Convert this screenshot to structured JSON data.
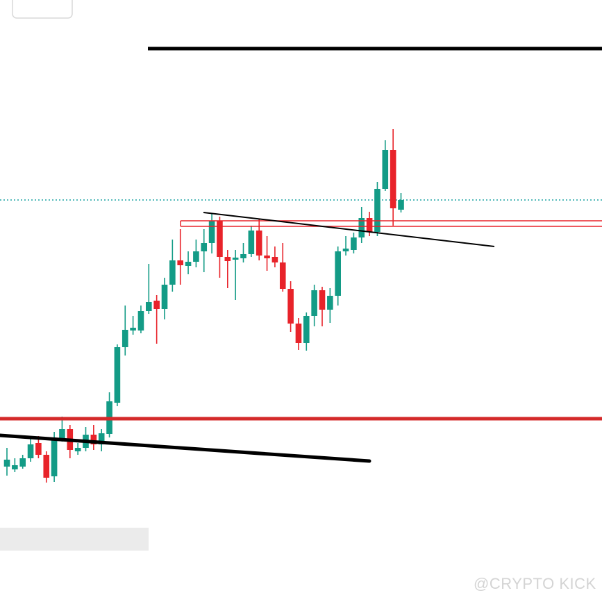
{
  "chart_data": {
    "type": "candlestick",
    "watermark": "@CRYPTO KICK",
    "ylim": [
      0,
      867
    ],
    "up_color": "#139b86",
    "down_color": "#e8232a",
    "open": [
      195,
      191,
      195,
      207,
      229,
      212,
      181,
      235,
      249,
      217,
      222,
      241,
      227,
      242,
      287,
      367,
      391,
      391,
      419,
      434,
      422,
      457,
      492,
      484,
      490,
      505,
      517,
      549,
      497,
      493,
      495,
      501,
      535,
      499,
      497,
      489,
      451,
      401,
      373,
      412,
      449,
      421,
      441,
      505,
      507,
      525,
      553,
      533,
      595,
      651,
      565
    ],
    "high": [
      222,
      207,
      212,
      235,
      239,
      217,
      245,
      267,
      255,
      229,
      252,
      255,
      249,
      302,
      371,
      427,
      412,
      427,
      487,
      442,
      467,
      522,
      537,
      505,
      522,
      537,
      559,
      555,
      507,
      507,
      517,
      542,
      552,
      527,
      512,
      517,
      462,
      409,
      417,
      457,
      454,
      452,
      512,
      527,
      532,
      569,
      562,
      605,
      665,
      681,
      589
    ],
    "low": [
      182,
      187,
      192,
      202,
      207,
      172,
      173,
      231,
      207,
      212,
      217,
      219,
      217,
      237,
      282,
      355,
      385,
      387,
      415,
      372,
      407,
      447,
      457,
      472,
      482,
      475,
      502,
      467,
      452,
      435,
      489,
      497,
      492,
      477,
      482,
      447,
      389,
      363,
      362,
      397,
      397,
      402,
      427,
      499,
      502,
      517,
      527,
      527,
      592,
      542,
      561
    ],
    "close": [
      205,
      197,
      207,
      227,
      212,
      179,
      235,
      249,
      219,
      222,
      241,
      227,
      243,
      289,
      367,
      392,
      395,
      419,
      432,
      422,
      457,
      492,
      485,
      490,
      505,
      517,
      549,
      497,
      491,
      496,
      501,
      535,
      499,
      495,
      489,
      451,
      401,
      373,
      412,
      449,
      421,
      441,
      505,
      509,
      525,
      553,
      533,
      595,
      651,
      567,
      579
    ]
  }
}
